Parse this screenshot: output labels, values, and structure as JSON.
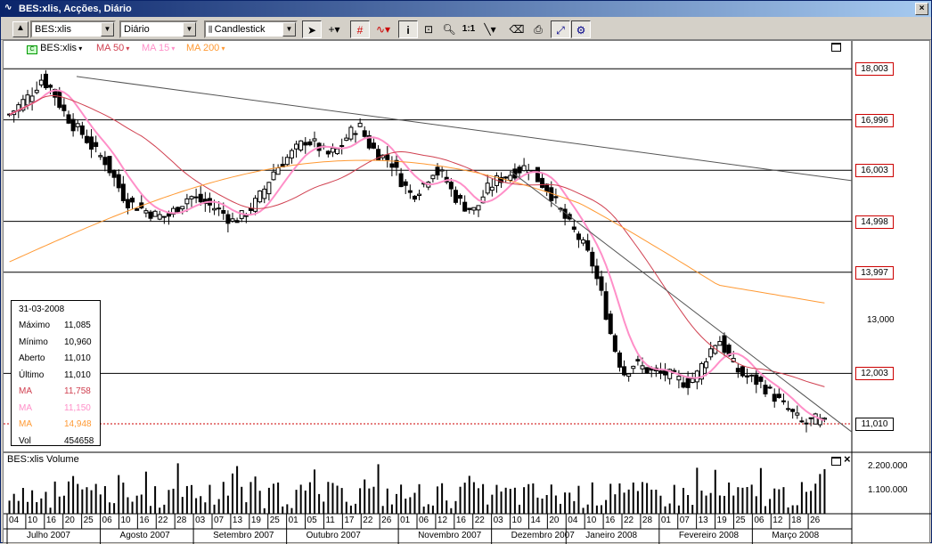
{
  "window": {
    "title": "BES:xlis, Acções, Diário"
  },
  "toolbar": {
    "symbol": "BES:xlis",
    "period": "Diário",
    "chart_type": "Candlestick",
    "zoom_1to1": "1:1",
    "tools": [
      "pointer-icon",
      "crosshair-icon",
      "grid-icon",
      "indicator-icon",
      "info-icon",
      "new-window-icon",
      "zoom-icon",
      "ratio-icon",
      "line-icon",
      "eraser-icon",
      "print-icon",
      "autoscale-icon",
      "settings-icon"
    ]
  },
  "legend": {
    "symbol": "BES:xlis",
    "ma50": "MA 50",
    "ma15": "MA 15",
    "ma200": "MA 200",
    "colors": {
      "ma50": "#d04050",
      "ma15": "#ff8fc8",
      "ma200": "#ff9933"
    }
  },
  "info": {
    "date": "31-03-2008",
    "rows": [
      {
        "label": "Máximo",
        "value": "11,085"
      },
      {
        "label": "Mínimo",
        "value": "10,960"
      },
      {
        "label": "Aberto",
        "value": "11,010"
      },
      {
        "label": "Último",
        "value": "11,010"
      },
      {
        "label": "MA",
        "value": "11,758"
      },
      {
        "label": "MA",
        "value": "11,150"
      },
      {
        "label": "MA",
        "value": "14,948"
      },
      {
        "label": "Vol",
        "value": "454658"
      }
    ]
  },
  "price_axis": {
    "boxed": [
      "18,003",
      "16,996",
      "16,003",
      "14,998",
      "13,997",
      "12,003",
      "11,010"
    ],
    "plain": [
      "13,000"
    ]
  },
  "volume_panel": {
    "title": "BES:xlis Volume",
    "ticks": [
      "2.200.000",
      "1.100.000"
    ]
  },
  "x_axis": {
    "days": [
      "04",
      "10",
      "16",
      "20",
      "25",
      "06",
      "10",
      "16",
      "22",
      "28",
      "03",
      "07",
      "13",
      "19",
      "25",
      "01",
      "05",
      "11",
      "17",
      "22",
      "26",
      "01",
      "06",
      "12",
      "16",
      "22",
      "03",
      "10",
      "14",
      "20",
      "04",
      "10",
      "16",
      "22",
      "28",
      "01",
      "07",
      "13",
      "19",
      "25",
      "06",
      "12",
      "18",
      "26"
    ],
    "months": [
      "Julho 2007",
      "Agosto 2007",
      "Setembro 2007",
      "Outubro 2007",
      "Novembro 2007",
      "Dezembro 2007",
      "Janeiro 2008",
      "Fevereiro 2008",
      "Março 2008"
    ]
  },
  "chart_data": {
    "type": "candlestick",
    "symbol": "BES:xlis",
    "period": "daily",
    "x_start": "2007-07-04",
    "x_end": "2008-03-31",
    "ylim": [
      10.5,
      18.5
    ],
    "horizontal_levels": [
      18.003,
      16.996,
      16.003,
      14.998,
      13.997,
      12.003,
      11.01
    ],
    "last_close": 11.01,
    "close_series": [
      17.1,
      17.3,
      17.5,
      17.8,
      17.6,
      17.2,
      16.9,
      16.7,
      16.4,
      16.2,
      15.8,
      15.4,
      15.3,
      15.2,
      15.1,
      15.1,
      15.3,
      15.5,
      15.4,
      15.3,
      15.2,
      15.0,
      15.1,
      15.3,
      15.6,
      16.0,
      16.2,
      16.4,
      16.6,
      16.5,
      16.3,
      16.4,
      16.7,
      16.9,
      16.5,
      16.3,
      16.2,
      15.8,
      15.5,
      15.7,
      16.0,
      15.9,
      15.5,
      15.3,
      15.2,
      15.6,
      15.8,
      15.9,
      16.0,
      16.1,
      15.8,
      15.6,
      15.2,
      14.9,
      14.6,
      14.2,
      13.5,
      12.6,
      12.0,
      12.2,
      12.1,
      12.0,
      12.0,
      11.9,
      11.8,
      12.0,
      12.4,
      12.7,
      12.3,
      12.0,
      11.9,
      11.8,
      11.6,
      11.4,
      11.2,
      11.0,
      11.1,
      11.01
    ]
  }
}
